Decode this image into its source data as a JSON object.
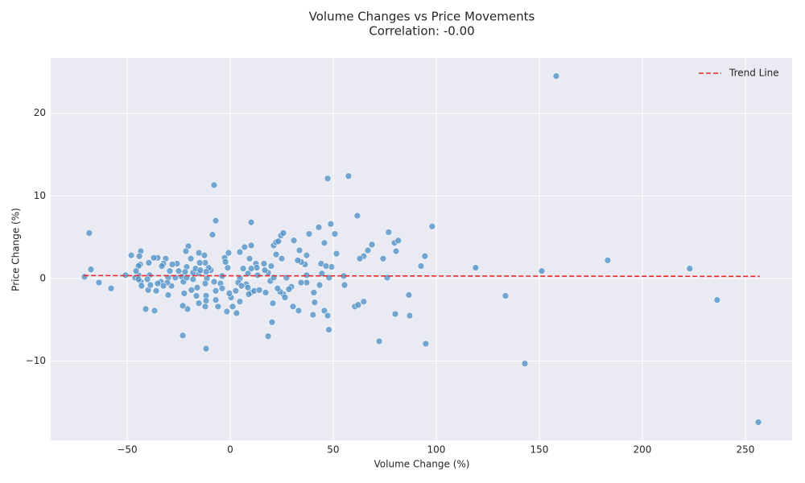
{
  "chart_data": {
    "type": "scatter",
    "title": "Volume Changes vs Price Movements",
    "subtitle": "Correlation: -0.00",
    "x_label": "Volume Change (%)",
    "y_label": "Price Change (%)",
    "xlim": [
      -87.1,
      272.7
    ],
    "ylim": [
      -19.6,
      26.7
    ],
    "xticks": [
      {
        "value": -50,
        "label": "−50"
      },
      0,
      50,
      100,
      150,
      200,
      250
    ],
    "yticks": [
      {
        "value": -10,
        "label": "−10"
      },
      0,
      10,
      20
    ],
    "grid": true,
    "legend": "upper right",
    "series": [
      {
        "type": "scatter",
        "color": "#4a8ec4",
        "alpha": 0.75,
        "x": [
          158.2,
          256.3,
          143,
          47.3,
          57.4,
          -7.8,
          -68.4,
          -70.7,
          -67.6,
          -63.7,
          -57.8,
          183.2,
          223,
          236.3,
          133.6,
          119.1,
          151.2,
          98,
          94.5,
          92.6,
          94.9,
          72.3,
          86.7,
          87.1,
          80.1,
          76.9,
          79.7,
          81.6,
          80.5,
          76.2,
          74.2,
          68.8,
          66.8,
          64.8,
          62.9,
          61.7,
          64.8,
          60.5,
          62.1,
          55.5,
          55.1,
          50.8,
          48.8,
          51.6,
          49.2,
          45.7,
          44.1,
          46.5,
          48,
          44.5,
          43.4,
          43,
          38.3,
          37.1,
          36.3,
          37.1,
          37.1,
          34.4,
          33.6,
          34.4,
          30.9,
          40.6,
          41,
          40.2,
          45.7,
          47.3,
          47.9,
          33.2,
          30.5,
          29.7,
          28.5,
          25.8,
          26.6,
          24.2,
          23,
          20.7,
          20.3,
          18.4,
          19.5,
          19.9,
          18.4,
          16.4,
          16.8,
          13.3,
          12.5,
          12.9,
          10.2,
          9.4,
          10.2,
          10.2,
          7,
          4.7,
          6.3,
          8.6,
          7.8,
          8.6,
          10.2,
          11.7,
          14.1,
          17.2,
          9,
          4.7,
          3.9,
          5.5,
          2.7,
          1.2,
          3.1,
          4.7,
          -1.6,
          0.4,
          -0.4,
          -1.2,
          -0.8,
          -2.7,
          -2.3,
          -3.9,
          -4.7,
          -3.9,
          -5.9,
          -7,
          -7,
          -7.8,
          -7,
          -8.6,
          -9.4,
          -10.5,
          -11.7,
          -11.3,
          -12.1,
          -11.7,
          -11.7,
          -12.1,
          -11.7,
          -12.1,
          -12.5,
          -15.2,
          -14.8,
          -15.2,
          -16,
          -16.4,
          -15.2,
          -18,
          -18,
          -19.1,
          -20.3,
          -21.5,
          -21.1,
          -21.9,
          -23.4,
          -22.7,
          -22.3,
          -20.7,
          -23,
          -23,
          -25.8,
          -25,
          -26.6,
          -28.1,
          -29.3,
          -30.1,
          -28.5,
          -30.5,
          -31.3,
          -32.4,
          -33.2,
          -35.2,
          -37.1,
          -33.6,
          -32.4,
          -35.2,
          -35.9,
          -36.7,
          -41,
          -39.1,
          -40.2,
          -39.5,
          -39.8,
          -38.7,
          -30.1,
          -43.4,
          -44.1,
          -43.7,
          -44.5,
          -44.5,
          -43.4,
          -43,
          -45.7,
          -46.1,
          -48,
          -50.8,
          -44.5,
          -16.8,
          -18.8,
          -14.5,
          -21.1,
          21.1,
          22.3,
          23.4,
          24.6,
          25.8,
          22.3,
          25,
          32.8,
          27.3,
          21.1
        ],
        "values": [
          24.5,
          -17.4,
          -10.3,
          12.1,
          12.4,
          11.3,
          5.5,
          0.2,
          1.1,
          -0.5,
          -1.2,
          2.2,
          1.2,
          -2.6,
          -2.1,
          1.3,
          0.9,
          6.3,
          2.7,
          1.5,
          -7.9,
          -7.6,
          -2.0,
          -4.5,
          -4.3,
          5.6,
          4.3,
          4.6,
          3.3,
          0.1,
          2.4,
          4.1,
          3.4,
          2.7,
          2.4,
          7.6,
          -2.8,
          -3.4,
          -3.2,
          -0.8,
          0.3,
          5.4,
          6.6,
          3.0,
          1.4,
          4.3,
          1.8,
          1.5,
          0.1,
          0.6,
          -0.8,
          6.2,
          5.4,
          2.8,
          1.7,
          0.4,
          -0.5,
          -0.5,
          3.4,
          2.0,
          4.6,
          -1.7,
          -2.9,
          -4.4,
          -3.9,
          -4.5,
          -6.2,
          -3.9,
          -3.4,
          -1.0,
          -1.3,
          -1.9,
          -2.3,
          -1.6,
          -1.2,
          -3.0,
          -5.3,
          -7.0,
          -0.3,
          1.5,
          0.7,
          1.8,
          1.0,
          0.4,
          1.8,
          1.3,
          1.2,
          2.4,
          4.0,
          6.8,
          3.8,
          3.2,
          1.2,
          0.6,
          -0.7,
          -1.1,
          -1.7,
          -1.5,
          -1.4,
          -1.7,
          -1.9,
          0,
          -0.5,
          -0.9,
          -1.5,
          -3.4,
          -4.2,
          -2.8,
          -4.0,
          -2.3,
          -1.8,
          1.3,
          3.1,
          2.5,
          2.0,
          0.3,
          -0.6,
          -1.2,
          -3.4,
          -2.6,
          -1.5,
          -0.4,
          7.0,
          5.3,
          1.0,
          1.3,
          0.8,
          0,
          -0.6,
          -2.1,
          -2.7,
          -3.4,
          -8.5,
          1.9,
          2.8,
          3.1,
          1.9,
          0.6,
          -1.1,
          -2.1,
          -3.0,
          0.7,
          -0.1,
          2.4,
          3.9,
          3.3,
          1.4,
          0.8,
          0.2,
          -0.4,
          -1.8,
          -3.7,
          -3.3,
          -6.9,
          1.8,
          0.9,
          0.1,
          1.7,
          0.9,
          0.1,
          -0.9,
          -0.5,
          2.4,
          1.8,
          1.5,
          2.5,
          2.5,
          -0.4,
          -0.9,
          -0.6,
          -1.5,
          -3.9,
          -3.7,
          0.4,
          -0.1,
          1.9,
          -1.4,
          -0.8,
          -2.0,
          3.3,
          2.7,
          1.7,
          1.5,
          0.4,
          -0.4,
          -0.9,
          0.9,
          0.1,
          2.8,
          0.4,
          -0.1,
          1.2,
          -1.4,
          1.0,
          0.1,
          4.0,
          4.4,
          4.5,
          5.2,
          5.5,
          2.9,
          2.4,
          2.2,
          0.1,
          0.1
        ]
      },
      {
        "type": "line",
        "name": "Trend Line",
        "color": "#e8292b",
        "dashed": true,
        "x": [
          -71,
          257
        ],
        "values": [
          0.35,
          0.25
        ]
      }
    ]
  }
}
